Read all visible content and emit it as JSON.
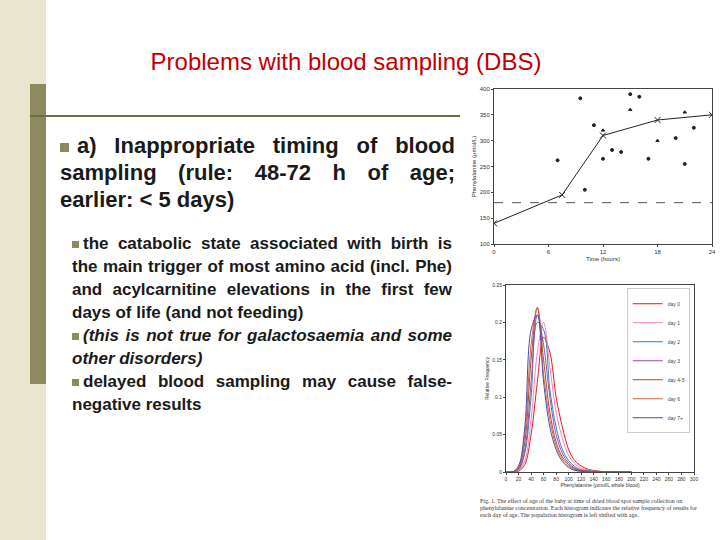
{
  "slide": {
    "title": "Problems with blood sampling (DBS)",
    "main_bullet": "a) Inappropriate timing of blood sampling (rule: 48-72 h of age; earlier: < 5 days)",
    "sub_bullets": [
      {
        "text": "the catabolic state associated with birth is the main trigger of most amino acid (incl. Phe) and acylcarnitine elevations in the first few days of life (and not feeding)",
        "italic": false
      },
      {
        "text": "(this is not true for galactosaemia and some other disorders)",
        "italic": true
      },
      {
        "text": "delayed blood sampling may cause false-negative results",
        "italic": false
      }
    ]
  },
  "chart_data": [
    {
      "type": "line",
      "x_label": "Time (hours)",
      "y_label": "Phenylalanine (µmol/L)",
      "xlim": [
        0,
        24
      ],
      "xticks": [
        0,
        6,
        12,
        18,
        24
      ],
      "ylim": [
        100,
        400
      ],
      "yticks": [
        100,
        150,
        200,
        250,
        300,
        350,
        400
      ],
      "grid": false,
      "reference_line": 180,
      "series": [
        {
          "type": "line",
          "marker": "x",
          "color": "#222222",
          "line_style": "solid",
          "x": [
            0,
            7.5,
            12,
            18,
            24
          ],
          "values": [
            140,
            195,
            310,
            340,
            350
          ]
        },
        {
          "type": "scatter",
          "marker": "circle",
          "color": "#222222",
          "x": [
            7,
            9.5,
            10,
            11,
            12,
            13,
            14,
            15,
            16,
            17,
            20,
            21,
            22
          ],
          "values": [
            262,
            382,
            205,
            330,
            265,
            282,
            278,
            390,
            385,
            265,
            305,
            255,
            325
          ]
        },
        {
          "type": "scatter",
          "marker": "triangle-up",
          "color": "#222222",
          "x": [
            12,
            15,
            18,
            21
          ],
          "values": [
            320,
            360,
            300,
            355
          ]
        }
      ]
    },
    {
      "type": "line",
      "x_label": "Phenylalanine (µmol/L whole blood)",
      "y_label": "Relative Frequency",
      "xlim": [
        0,
        300
      ],
      "xticks": [
        0,
        20,
        40,
        60,
        80,
        100,
        120,
        140,
        160,
        180,
        200,
        220,
        240,
        260,
        280,
        300
      ],
      "ylim": [
        0,
        0.25
      ],
      "yticks": [
        0,
        0.05,
        0.1,
        0.15,
        0.2,
        0.25
      ],
      "grid": false,
      "legend": "top right",
      "caption": "Fig. 1. The effect of age of the baby at time of dried blood spot sample collection on phenylalanine concentration. Each histogram indicates the relative frequency of results for each day of age. The population histogram is left shifted with age.",
      "x": [
        0,
        10,
        20,
        30,
        40,
        50,
        60,
        70,
        80,
        90,
        100,
        110,
        120,
        130,
        140,
        150,
        160,
        170,
        180,
        190,
        200
      ],
      "series": [
        {
          "name": "day 0",
          "color": "#e41a1c",
          "values": [
            0,
            0,
            0.001,
            0.01,
            0.05,
            0.12,
            0.18,
            0.16,
            0.1,
            0.06,
            0.03,
            0.015,
            0.008,
            0.004,
            0.002,
            0.001,
            0,
            0,
            0,
            0,
            0
          ]
        },
        {
          "name": "day 1",
          "color": "#f781bf",
          "values": [
            0,
            0,
            0.002,
            0.015,
            0.07,
            0.16,
            0.2,
            0.14,
            0.08,
            0.045,
            0.022,
            0.011,
            0.005,
            0.003,
            0.001,
            0,
            0,
            0,
            0,
            0,
            0
          ]
        },
        {
          "name": "day 2",
          "color": "#377eb8",
          "values": [
            0,
            0,
            0.003,
            0.025,
            0.1,
            0.2,
            0.19,
            0.11,
            0.06,
            0.03,
            0.015,
            0.007,
            0.003,
            0.002,
            0.001,
            0,
            0,
            0,
            0,
            0,
            0
          ]
        },
        {
          "name": "day 3",
          "color": "#984ea3",
          "values": [
            0,
            0,
            0.004,
            0.03,
            0.12,
            0.21,
            0.17,
            0.1,
            0.05,
            0.025,
            0.012,
            0.005,
            0.002,
            0.001,
            0,
            0,
            0,
            0,
            0,
            0,
            0
          ]
        },
        {
          "name": "day 4-5",
          "color": "#a0522d",
          "values": [
            0,
            0,
            0.005,
            0.04,
            0.15,
            0.22,
            0.15,
            0.08,
            0.04,
            0.02,
            0.01,
            0.004,
            0.002,
            0.001,
            0,
            0,
            0,
            0,
            0,
            0,
            0
          ]
        },
        {
          "name": "day 6",
          "color": "#d6604d",
          "values": [
            0,
            0,
            0.006,
            0.05,
            0.17,
            0.22,
            0.13,
            0.07,
            0.035,
            0.017,
            0.008,
            0.003,
            0.001,
            0,
            0,
            0,
            0,
            0,
            0,
            0,
            0
          ]
        },
        {
          "name": "day 7+",
          "color": "#4d4d9f",
          "values": [
            0,
            0,
            0.008,
            0.06,
            0.19,
            0.21,
            0.12,
            0.06,
            0.03,
            0.014,
            0.006,
            0.002,
            0.001,
            0,
            0,
            0,
            0,
            0,
            0,
            0,
            0
          ]
        }
      ]
    }
  ]
}
